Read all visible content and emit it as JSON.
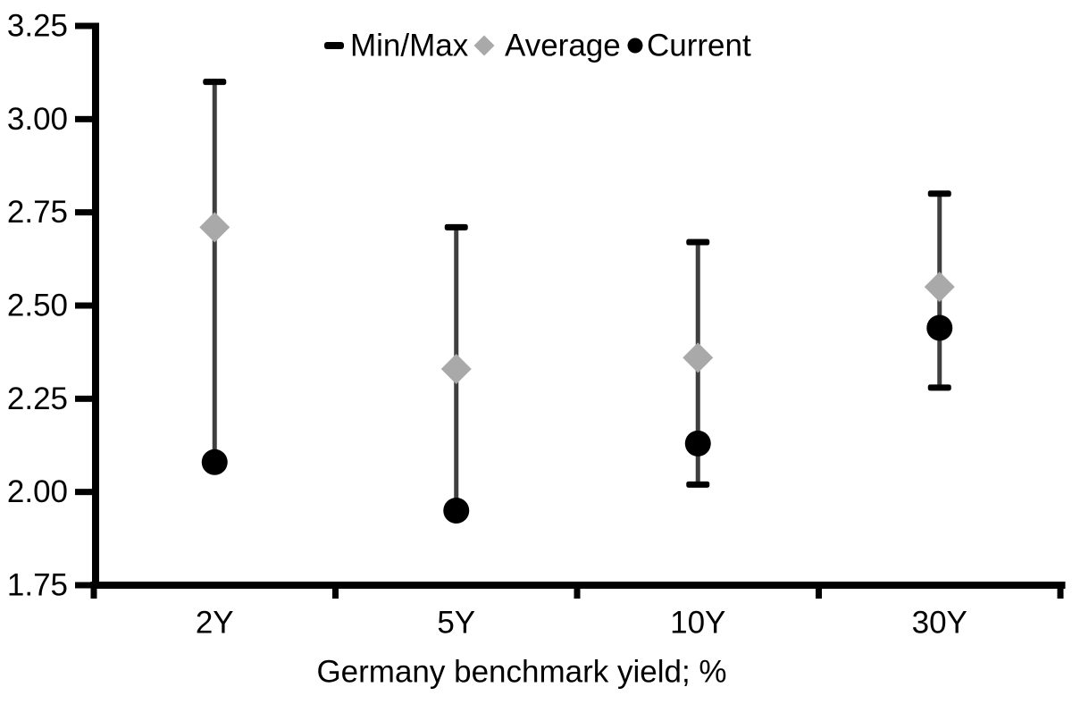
{
  "chart_data": {
    "type": "scatter",
    "subtype": "min-max-range-with-markers",
    "title": "",
    "xlabel": "Germany benchmark yield; %",
    "ylabel": "",
    "categories": [
      "2Y",
      "5Y",
      "10Y",
      "30Y"
    ],
    "ylim": [
      1.75,
      3.25
    ],
    "ytick_step": 0.25,
    "ytick_labels": [
      "3.25",
      "3.00",
      "2.75",
      "2.50",
      "2.25",
      "2.00",
      "1.75"
    ],
    "grid": false,
    "legend_position": "top-center",
    "legend": [
      {
        "name": "Min/Max",
        "marker": "dash",
        "color": "#000000"
      },
      {
        "name": "Average",
        "marker": "diamond",
        "color": "#a9a9a9"
      },
      {
        "name": "Current",
        "marker": "circle",
        "color": "#000000"
      }
    ],
    "series": [
      {
        "name": "Max",
        "values": [
          3.1,
          2.71,
          2.67,
          2.8
        ]
      },
      {
        "name": "Min",
        "values": [
          2.08,
          1.95,
          2.02,
          2.28
        ]
      },
      {
        "name": "Average",
        "values": [
          2.71,
          2.33,
          2.36,
          2.55
        ]
      },
      {
        "name": "Current",
        "values": [
          2.08,
          1.95,
          2.13,
          2.44
        ]
      }
    ]
  },
  "colors": {
    "background": "#ffffff",
    "text": "#000000",
    "axis": "#000000",
    "range_line": "#3f3f3f",
    "cap_black": "#000000",
    "average_gray": "#a9a9a9",
    "current_black": "#000000"
  }
}
